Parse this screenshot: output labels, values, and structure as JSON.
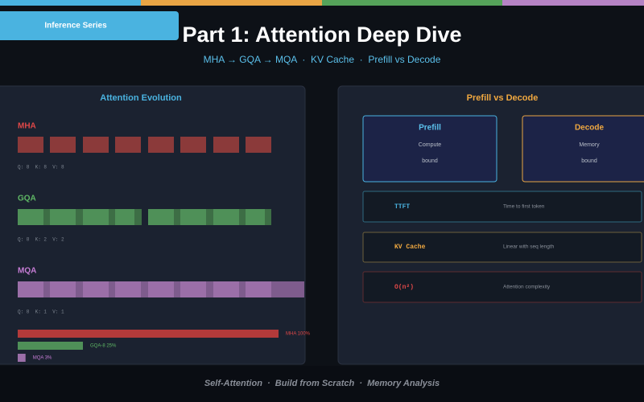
{
  "header": {
    "badge": "Inference Series",
    "title": "Part 1: Attention Deep Dive",
    "subtitle": "MHA → GQA → MQA  ·  KV Cache  ·  Prefill vs Decode"
  },
  "evolution": {
    "title": "Attention Evolution",
    "variants": [
      {
        "name": "MHA",
        "heads": "Q: 8  K: 8  V: 8"
      },
      {
        "name": "GQA",
        "heads": "Q: 8  K: 2  V: 2"
      },
      {
        "name": "MQA",
        "heads": "Q: 8  K: 1  V: 1"
      }
    ],
    "kv_bars": [
      {
        "value": 100,
        "label": "MHA 100%"
      },
      {
        "value": 25,
        "label": "GQA-8 25%"
      },
      {
        "value": 3,
        "label": "MQA 3%"
      }
    ]
  },
  "phases": {
    "title": "Prefill vs Decode",
    "cards": [
      {
        "name": "Prefill",
        "line1": "Compute",
        "line2": "bound"
      },
      {
        "name": "Decode",
        "line1": "Memory",
        "line2": "bound"
      }
    ],
    "rows": [
      {
        "key": "TTFT",
        "desc": "Time to first token"
      },
      {
        "key": "KV Cache",
        "desc": "Linear with seq length"
      },
      {
        "key": "O(n²)",
        "desc": "Attention complexity"
      }
    ]
  },
  "footer": "Self-Attention  ·  Build from Scratch  ·  Memory Analysis"
}
